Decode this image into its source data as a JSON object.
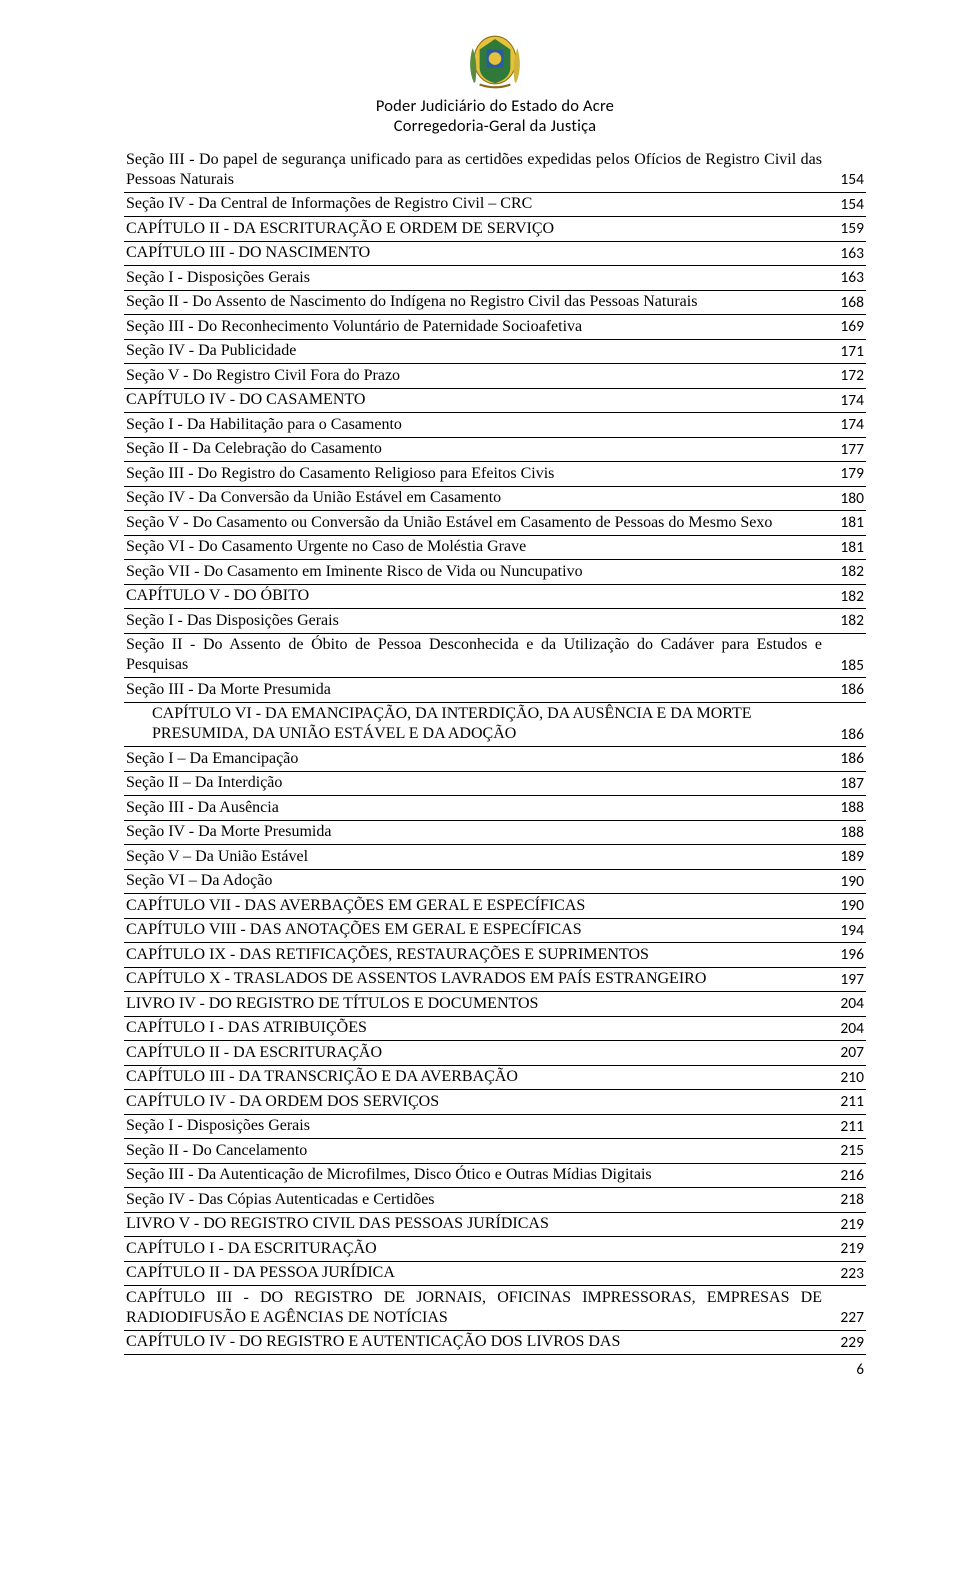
{
  "header": {
    "line1": "Poder Judiciário do Estado do Acre",
    "line2": "Corregedoria-Geral da Justiça"
  },
  "page_number": "6",
  "crest_colors": {
    "shield_green": "#2f7a3a",
    "shield_blue": "#2b5aa0",
    "shield_yellow": "#e6c23a",
    "leaf_green": "#5a8c3e",
    "leaf_yellow": "#d1b33a"
  },
  "toc": [
    {
      "indent": 3,
      "label": "Seção III - Do papel de segurança unificado para as certidões expedidas pelos Ofícios de Registro Civil das Pessoas Naturais",
      "page": "154",
      "justify": true
    },
    {
      "indent": 3,
      "label": "Seção IV - Da Central de Informações de Registro Civil – CRC",
      "page": "154"
    },
    {
      "indent": 2,
      "label": "CAPÍTULO II - DA ESCRITURAÇÃO E ORDEM DE SERVIÇO",
      "page": "159"
    },
    {
      "indent": 2,
      "label": "CAPÍTULO III - DO NASCIMENTO",
      "page": "163"
    },
    {
      "indent": 3,
      "label": "Seção I - Disposições Gerais",
      "page": "163"
    },
    {
      "indent": 3,
      "label": "Seção II - Do Assento de Nascimento do Indígena no Registro Civil das Pessoas Naturais",
      "page": "168",
      "justify": true
    },
    {
      "indent": 3,
      "label": "Seção III - Do Reconhecimento Voluntário de Paternidade Socioafetiva",
      "page": "169"
    },
    {
      "indent": 3,
      "label": "Seção IV - Da Publicidade",
      "page": "171"
    },
    {
      "indent": 3,
      "label": "Seção V - Do Registro Civil Fora do Prazo",
      "page": "172"
    },
    {
      "indent": 2,
      "label": "CAPÍTULO IV - DO CASAMENTO",
      "page": "174"
    },
    {
      "indent": 3,
      "label": "Seção I - Da Habilitação para o Casamento",
      "page": "174"
    },
    {
      "indent": 3,
      "label": "Seção II - Da Celebração do Casamento",
      "page": "177"
    },
    {
      "indent": 3,
      "label": "Seção III - Do Registro do Casamento Religioso para Efeitos Civis",
      "page": "179"
    },
    {
      "indent": 3,
      "label": "Seção IV - Da Conversão da União Estável em Casamento",
      "page": "180"
    },
    {
      "indent": 3,
      "label": "Seção V - Do Casamento ou Conversão da União Estável em Casamento de Pessoas do Mesmo Sexo",
      "page": "181",
      "justify": true
    },
    {
      "indent": 3,
      "label": "Seção VI - Do Casamento Urgente no Caso de Moléstia Grave",
      "page": "181"
    },
    {
      "indent": 3,
      "label": "Seção VII - Do Casamento em Iminente Risco de Vida ou Nuncupativo",
      "page": "182"
    },
    {
      "indent": 2,
      "label": "CAPÍTULO V - DO ÓBITO",
      "page": "182"
    },
    {
      "indent": 3,
      "label": "Seção I - Das Disposições Gerais",
      "page": "182"
    },
    {
      "indent": 3,
      "label": "Seção II - Do Assento de Óbito de Pessoa Desconhecida e da Utilização do Cadáver para Estudos e Pesquisas",
      "page": "185",
      "justify": true
    },
    {
      "indent": 3,
      "label": "Seção III - Da Morte Presumida",
      "page": "186"
    },
    {
      "indent": 2,
      "label": "CAPÍTULO VI - DA EMANCIPAÇÃO, DA INTERDIÇÃO, DA AUSÊNCIA E DA MORTE              PRESUMIDA, DA UNIÃO ESTÁVEL E DA ADOÇÃO",
      "page": "186",
      "raw_indent": true
    },
    {
      "indent": 3,
      "label": "Seção I – Da Emancipação",
      "page": "186"
    },
    {
      "indent": 3,
      "label": "Seção II – Da Interdição",
      "page": "187"
    },
    {
      "indent": 3,
      "label": "Seção III - Da Ausência",
      "page": "188"
    },
    {
      "indent": 3,
      "label": "Seção IV - Da Morte Presumida",
      "page": "188"
    },
    {
      "indent": 3,
      "label": "Seção V – Da União Estável",
      "page": "189"
    },
    {
      "indent": 3,
      "label": "Seção VI – Da Adoção",
      "page": "190"
    },
    {
      "indent": 2,
      "label": "CAPÍTULO VII - DAS AVERBAÇÕES EM GERAL E ESPECÍFICAS",
      "page": "190"
    },
    {
      "indent": 2,
      "label": "CAPÍTULO VIII - DAS ANOTAÇÕES EM GERAL E ESPECÍFICAS",
      "page": "194"
    },
    {
      "indent": 2,
      "label": "CAPÍTULO IX - DAS RETIFICAÇÕES, RESTAURAÇÕES E SUPRIMENTOS",
      "page": "196"
    },
    {
      "indent": 2,
      "label": "CAPÍTULO X - TRASLADOS DE ASSENTOS LAVRADOS EM PAÍS ESTRANGEIRO",
      "page": "197"
    },
    {
      "indent": 1,
      "label": "LIVRO IV - DO REGISTRO DE TÍTULOS E DOCUMENTOS",
      "page": "204"
    },
    {
      "indent": 2,
      "label": "CAPÍTULO I - DAS ATRIBUIÇÕES",
      "page": "204"
    },
    {
      "indent": 2,
      "label": "CAPÍTULO II - DA ESCRITURAÇÃO",
      "page": "207"
    },
    {
      "indent": 2,
      "label": "CAPÍTULO III - DA TRANSCRIÇÃO E DA AVERBAÇÃO",
      "page": "210"
    },
    {
      "indent": 2,
      "label": "CAPÍTULO IV - DA ORDEM DOS SERVIÇOS",
      "page": "211"
    },
    {
      "indent": 3,
      "label": "Seção I - Disposições Gerais",
      "page": "211"
    },
    {
      "indent": 3,
      "label": "Seção II - Do Cancelamento",
      "page": "215"
    },
    {
      "indent": 3,
      "label": "Seção III - Da Autenticação de Microfilmes, Disco Ótico e Outras Mídias Digitais",
      "page": "216"
    },
    {
      "indent": 3,
      "label": "Seção IV - Das Cópias Autenticadas e Certidões",
      "page": "218"
    },
    {
      "indent": 1,
      "label": "LIVRO V - DO REGISTRO CIVIL DAS PESSOAS JURÍDICAS",
      "page": "219"
    },
    {
      "indent": 2,
      "label": "CAPÍTULO I - DA ESCRITURAÇÃO",
      "page": "219"
    },
    {
      "indent": 2,
      "label": "CAPÍTULO II - DA PESSOA JURÍDICA",
      "page": "223"
    },
    {
      "indent": 2,
      "label": "CAPÍTULO III - DO REGISTRO DE JORNAIS, OFICINAS IMPRESSORAS, EMPRESAS DE RADIODIFUSÃO E AGÊNCIAS DE NOTÍCIAS",
      "page": "227",
      "justify": true
    },
    {
      "indent": 2,
      "label": "CAPÍTULO IV - DO REGISTRO E AUTENTICAÇÃO DOS LIVROS DAS",
      "page": "229",
      "justify": true
    }
  ]
}
